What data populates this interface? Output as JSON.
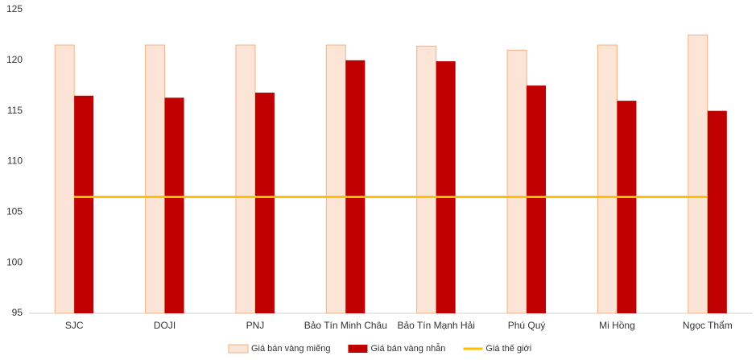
{
  "chart_data": {
    "type": "bar-line",
    "categories": [
      "SJC",
      "DOJI",
      "PNJ",
      "Bảo Tín Minh Châu",
      "Bảo Tín Mạnh Hải",
      "Phú Quý",
      "Mi Hồng",
      "Ngọc Thẩm"
    ],
    "series": [
      {
        "name": "Giá bán vàng miếng",
        "type": "bar",
        "color": "#fce4d6",
        "edge_color": "#f4b183",
        "values": [
          121.5,
          121.5,
          121.5,
          121.5,
          121.4,
          121.0,
          121.5,
          122.5
        ]
      },
      {
        "name": "Giá bán vàng nhẫn",
        "type": "bar",
        "color": "#c00000",
        "values": [
          116.5,
          116.3,
          116.8,
          120.0,
          119.9,
          117.5,
          116.0,
          115.0
        ]
      },
      {
        "name": "Giá thế giới",
        "type": "line",
        "color": "#ffc000",
        "values": [
          106.5,
          106.5,
          106.5,
          106.5,
          106.5,
          106.5,
          106.5,
          106.5
        ]
      }
    ],
    "ylim": [
      95,
      125
    ],
    "yticks": [
      95,
      100,
      105,
      110,
      115,
      120,
      125
    ],
    "grid": false,
    "legend": "bottom"
  }
}
